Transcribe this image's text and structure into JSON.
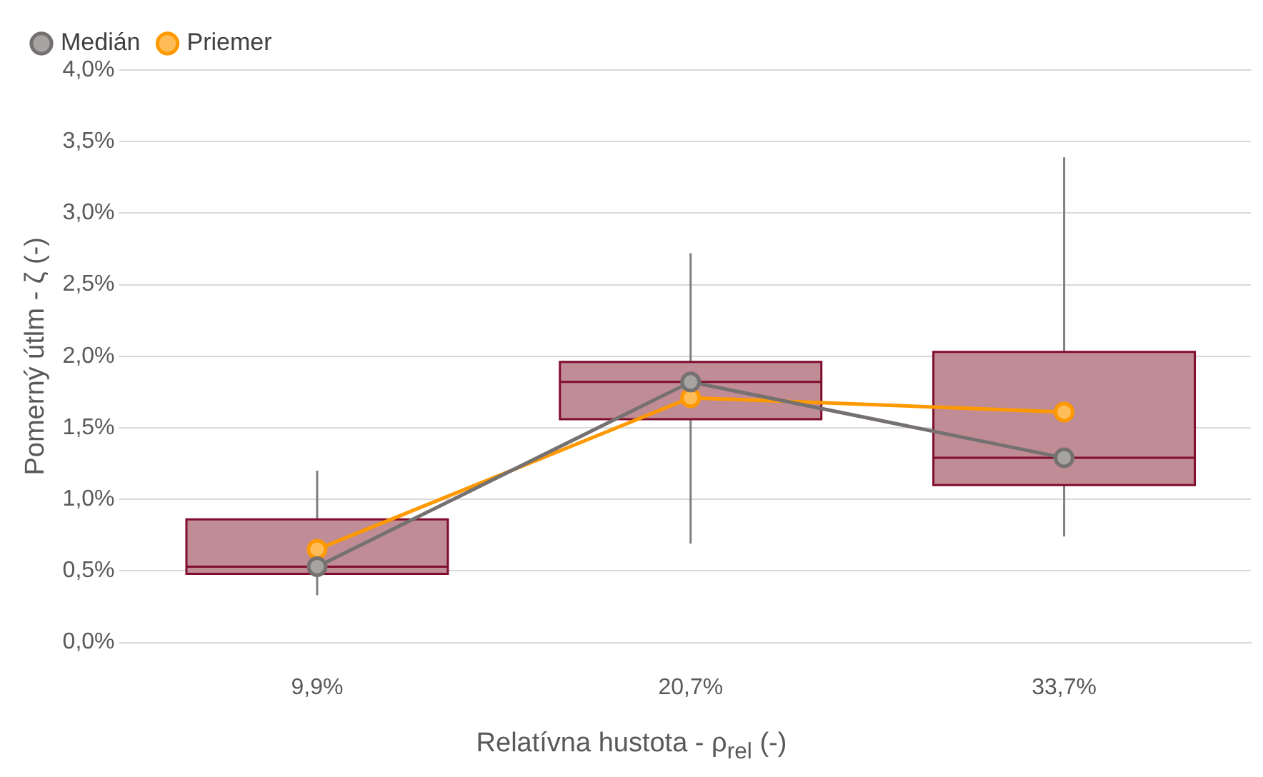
{
  "chart_data": {
    "type": "box",
    "xlabel": "Relatívna hustota - ρ$_{rel}$ (-)",
    "ylabel": "Pomerný útlm - ζ (-)",
    "categories": [
      "9,9%",
      "20,7%",
      "33,7%"
    ],
    "ylim": [
      0,
      4
    ],
    "yticks": [
      {
        "value": 0,
        "label": "0,0%"
      },
      {
        "value": 0.5,
        "label": "0,5%"
      },
      {
        "value": 1,
        "label": "1,0%"
      },
      {
        "value": 1.5,
        "label": "1,5%"
      },
      {
        "value": 2,
        "label": "2,0%"
      },
      {
        "value": 2.5,
        "label": "2,5%"
      },
      {
        "value": 3,
        "label": "3,0%"
      },
      {
        "value": 3.5,
        "label": "3,5%"
      },
      {
        "value": 4,
        "label": "4,0%"
      }
    ],
    "grid": "y",
    "legend": "top left",
    "marker": "circle",
    "series": [
      {
        "type": "box",
        "color": "#c08c96",
        "boxes": [
          {
            "low": 0.33,
            "q1": 0.48,
            "median": 0.53,
            "q3": 0.86,
            "high": 1.2
          },
          {
            "low": 0.69,
            "q1": 1.56,
            "median": 1.82,
            "q3": 1.96,
            "high": 2.72
          },
          {
            "low": 0.74,
            "q1": 1.1,
            "median": 1.29,
            "q3": 2.03,
            "high": 3.39
          }
        ]
      },
      {
        "type": "line",
        "name": "Medián",
        "color": "#767171",
        "values": [
          0.53,
          1.82,
          1.29
        ]
      },
      {
        "type": "line",
        "name": "Priemer",
        "color": "#ff9900",
        "values": [
          0.65,
          1.71,
          1.61
        ]
      }
    ]
  }
}
